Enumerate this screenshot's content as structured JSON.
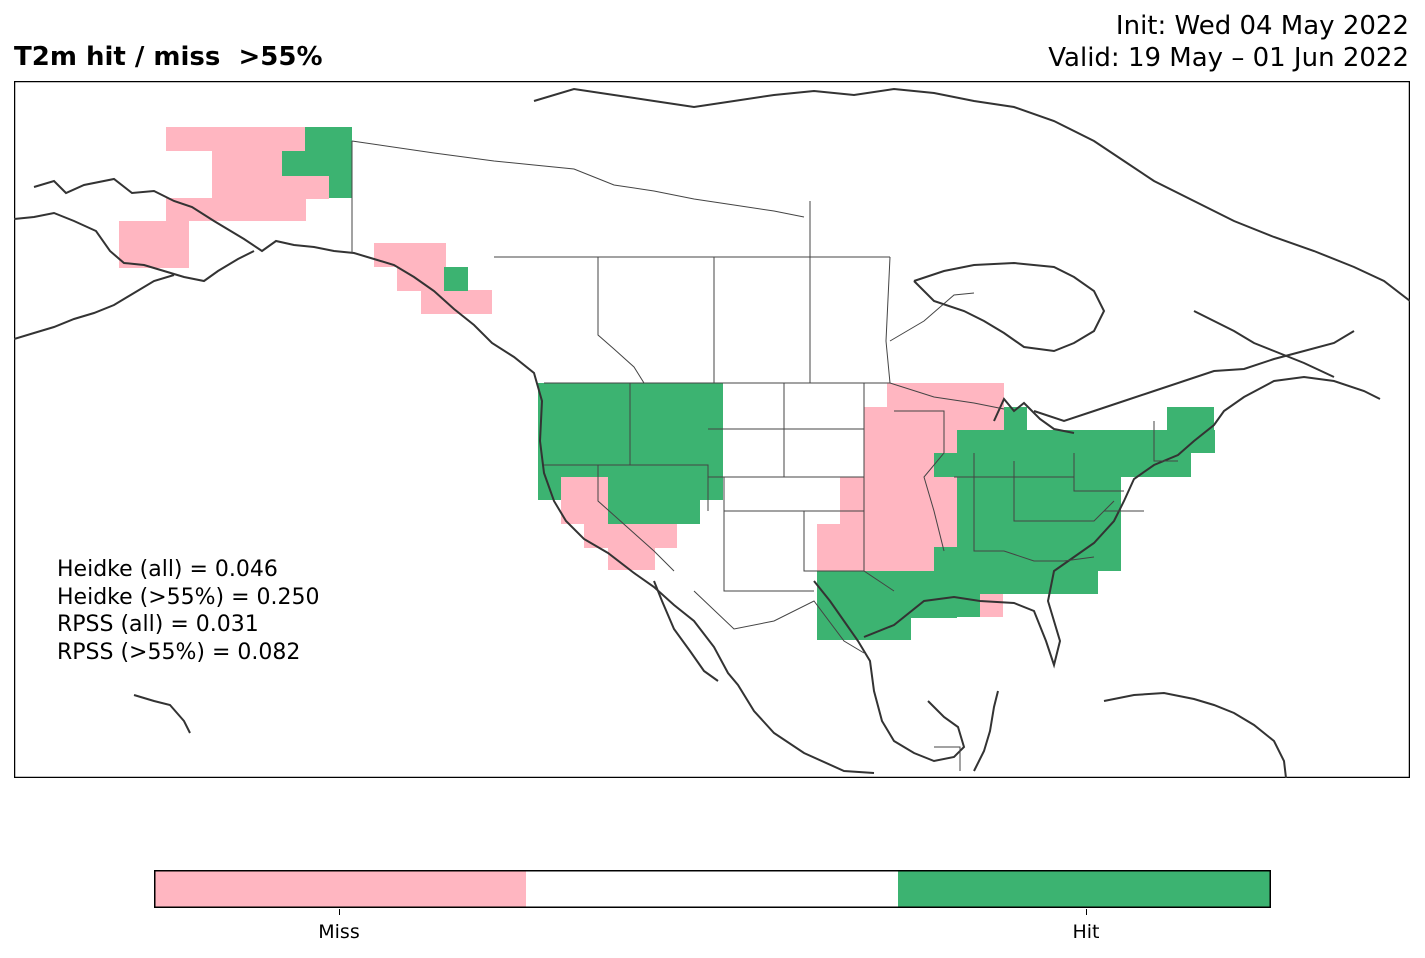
{
  "title": {
    "left": "T2m hit / miss  >55%",
    "init": "Init: Wed 04 May 2022",
    "valid": "Valid: 19 May – 01 Jun 2022"
  },
  "stats": [
    "Heidke (all) = 0.046",
    "Heidke (>55%) = 0.250",
    "RPSS (all) = 0.031",
    "RPSS (>55%) = 0.082"
  ],
  "legend": {
    "miss_label": "Miss",
    "hit_label": "Hit"
  },
  "colors": {
    "miss": "#ffb6c1",
    "hit": "#3cb371",
    "neutral": "#ffffff",
    "coast": "#333333",
    "border": "#444444"
  }
}
